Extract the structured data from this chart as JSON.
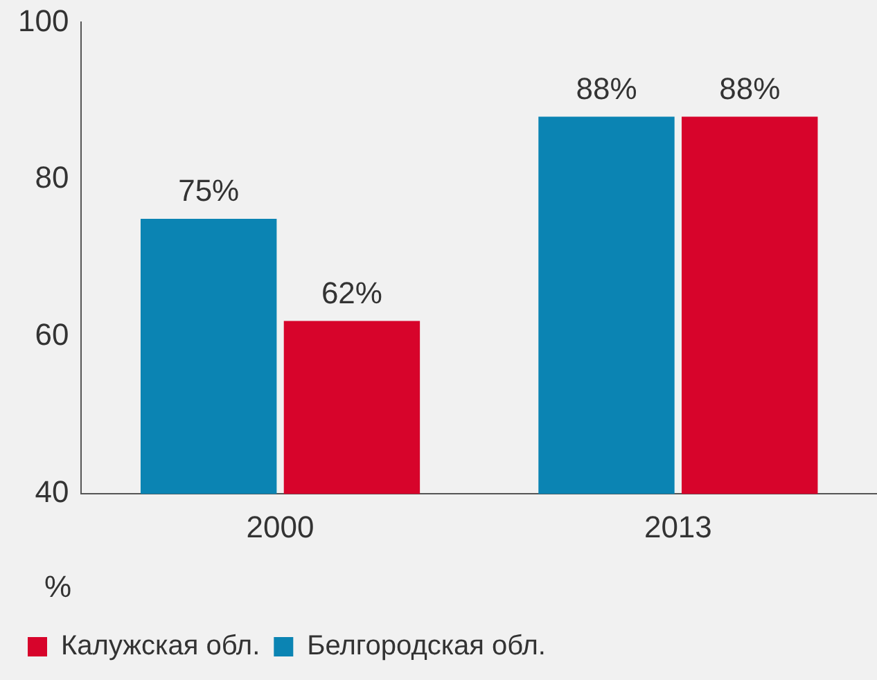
{
  "chart_data": {
    "type": "bar",
    "categories": [
      "2000",
      "2013"
    ],
    "ylabel": "%",
    "ylim": [
      40,
      100
    ],
    "yticks": [
      40,
      60,
      80,
      100
    ],
    "grid": false,
    "legend": "bottom left",
    "series": [
      {
        "name": "Белгородская обл.",
        "color": "#0b84b3",
        "values": [
          75,
          88
        ],
        "value_labels": [
          "75%",
          "88%"
        ]
      },
      {
        "name": "Калужская обл.",
        "color": "#d7042b",
        "values": [
          62,
          88
        ],
        "value_labels": [
          "62%",
          "88%"
        ]
      }
    ]
  }
}
